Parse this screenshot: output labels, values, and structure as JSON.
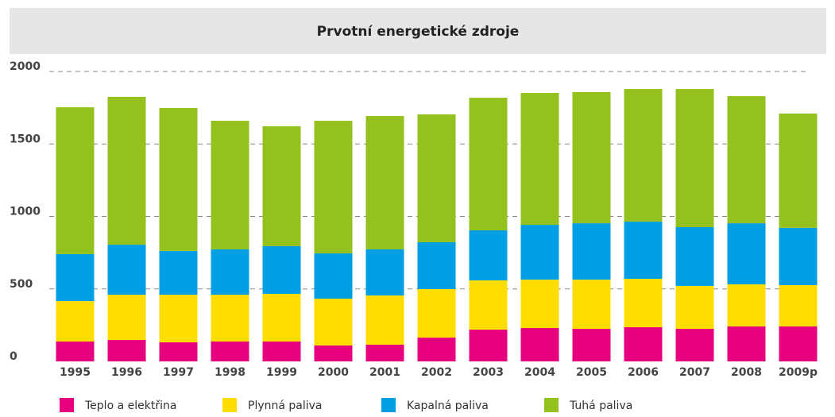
{
  "chart_data": {
    "type": "stacked_bar",
    "title": "Prvotní energetické zdroje",
    "categories": [
      "1995",
      "1996",
      "1997",
      "1998",
      "1999",
      "2000",
      "2001",
      "2002",
      "2003",
      "2004",
      "2005",
      "2006",
      "2007",
      "2008",
      "2009p"
    ],
    "series": [
      {
        "name": "Teplo a elektřina",
        "color": "#e6007e",
        "values": [
          137,
          148,
          132,
          137,
          137,
          110,
          115,
          164,
          219,
          230,
          225,
          236,
          225,
          241,
          241
        ]
      },
      {
        "name": "Plynná paliva",
        "color": "#ffdd00",
        "values": [
          279,
          312,
          328,
          323,
          329,
          323,
          340,
          335,
          340,
          334,
          339,
          334,
          296,
          291,
          285
        ]
      },
      {
        "name": "Kapalná paliva",
        "color": "#009fe3",
        "values": [
          324,
          345,
          302,
          313,
          329,
          312,
          318,
          323,
          345,
          378,
          389,
          394,
          405,
          421,
          395
        ]
      },
      {
        "name": "Tuhá paliva",
        "color": "#95c11f",
        "values": [
          1013,
          1020,
          986,
          887,
          827,
          915,
          920,
          882,
          915,
          910,
          905,
          915,
          953,
          877,
          789
        ]
      }
    ],
    "ylim": [
      0,
      2000
    ],
    "yticks": [
      0,
      500,
      1000,
      1500,
      2000
    ],
    "grid": true
  }
}
